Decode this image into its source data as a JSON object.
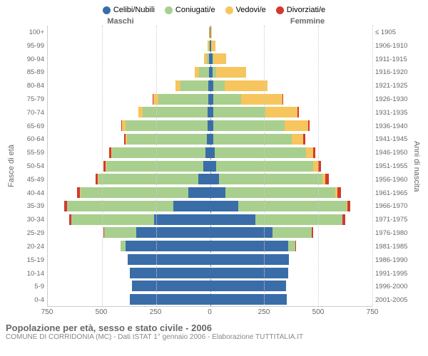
{
  "legend": [
    {
      "label": "Celibi/Nubili",
      "color": "#3a6da8"
    },
    {
      "label": "Coniugati/e",
      "color": "#a8cf8e"
    },
    {
      "label": "Vedovi/e",
      "color": "#f6c55d"
    },
    {
      "label": "Divorziati/e",
      "color": "#d13a2e"
    }
  ],
  "headers": {
    "male": "Maschi",
    "female": "Femmine"
  },
  "axis": {
    "left_title": "Fasce di età",
    "right_title": "Anni di nascita",
    "xmax": 750,
    "xticks": [
      -750,
      -500,
      -250,
      0,
      250,
      500,
      750
    ],
    "xtick_labels": [
      "750",
      "500",
      "250",
      "0",
      "250",
      "500",
      "750"
    ]
  },
  "age_labels": [
    "100+",
    "95-99",
    "90-94",
    "85-89",
    "80-84",
    "75-79",
    "70-74",
    "65-69",
    "60-64",
    "55-59",
    "50-54",
    "45-49",
    "40-44",
    "35-39",
    "30-34",
    "25-29",
    "20-24",
    "15-19",
    "10-14",
    "5-9",
    "0-4"
  ],
  "birth_labels": [
    "≤ 1905",
    "1906-1910",
    "1911-1915",
    "1916-1920",
    "1921-1925",
    "1926-1930",
    "1931-1935",
    "1936-1940",
    "1941-1945",
    "1946-1950",
    "1951-1955",
    "1956-1960",
    "1961-1965",
    "1966-1970",
    "1971-1975",
    "1976-1980",
    "1981-1985",
    "1986-1990",
    "1991-1995",
    "1996-2000",
    "2001-2005"
  ],
  "rows": [
    {
      "m": [
        2,
        1,
        2,
        0
      ],
      "f": [
        3,
        0,
        5,
        0
      ]
    },
    {
      "m": [
        3,
        2,
        5,
        0
      ],
      "f": [
        4,
        0,
        20,
        0
      ]
    },
    {
      "m": [
        5,
        10,
        12,
        0
      ],
      "f": [
        10,
        5,
        60,
        0
      ]
    },
    {
      "m": [
        6,
        45,
        20,
        0
      ],
      "f": [
        12,
        15,
        140,
        0
      ]
    },
    {
      "m": [
        8,
        130,
        22,
        0
      ],
      "f": [
        16,
        50,
        200,
        0
      ]
    },
    {
      "m": [
        8,
        230,
        25,
        2
      ],
      "f": [
        14,
        130,
        190,
        4
      ]
    },
    {
      "m": [
        10,
        300,
        20,
        3
      ],
      "f": [
        14,
        240,
        150,
        5
      ]
    },
    {
      "m": [
        12,
        380,
        15,
        5
      ],
      "f": [
        14,
        330,
        110,
        7
      ]
    },
    {
      "m": [
        14,
        370,
        8,
        6
      ],
      "f": [
        16,
        360,
        55,
        8
      ]
    },
    {
      "m": [
        22,
        430,
        6,
        8
      ],
      "f": [
        22,
        420,
        35,
        10
      ]
    },
    {
      "m": [
        30,
        450,
        4,
        10
      ],
      "f": [
        28,
        450,
        22,
        12
      ]
    },
    {
      "m": [
        55,
        460,
        3,
        12
      ],
      "f": [
        40,
        480,
        14,
        14
      ]
    },
    {
      "m": [
        100,
        500,
        2,
        14
      ],
      "f": [
        70,
        510,
        8,
        16
      ]
    },
    {
      "m": [
        170,
        490,
        1,
        14
      ],
      "f": [
        130,
        500,
        5,
        14
      ]
    },
    {
      "m": [
        260,
        380,
        0,
        12
      ],
      "f": [
        210,
        400,
        3,
        12
      ]
    },
    {
      "m": [
        340,
        150,
        0,
        4
      ],
      "f": [
        290,
        180,
        1,
        6
      ]
    },
    {
      "m": [
        390,
        25,
        0,
        0
      ],
      "f": [
        360,
        35,
        0,
        1
      ]
    },
    {
      "m": [
        380,
        0,
        0,
        0
      ],
      "f": [
        365,
        0,
        0,
        0
      ]
    },
    {
      "m": [
        370,
        0,
        0,
        0
      ],
      "f": [
        360,
        0,
        0,
        0
      ]
    },
    {
      "m": [
        360,
        0,
        0,
        0
      ],
      "f": [
        350,
        0,
        0,
        0
      ]
    },
    {
      "m": [
        370,
        0,
        0,
        0
      ],
      "f": [
        355,
        0,
        0,
        0
      ]
    }
  ],
  "footer": {
    "title": "Popolazione per età, sesso e stato civile - 2006",
    "sub": "COMUNE DI CORRIDONIA (MC) - Dati ISTAT 1° gennaio 2006 - Elaborazione TUTTITALIA.IT"
  },
  "colors": {
    "grid": "#cccccc",
    "text": "#686868"
  }
}
